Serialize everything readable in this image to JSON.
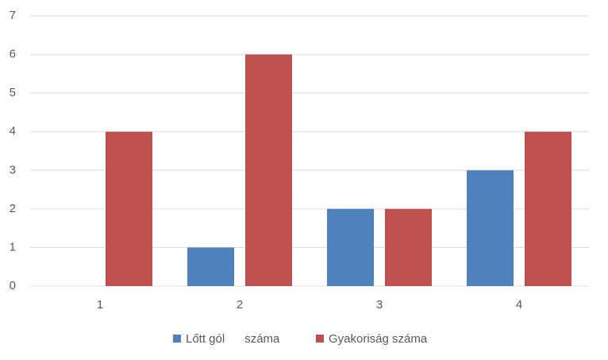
{
  "chart_data": {
    "type": "bar",
    "categories": [
      "1",
      "2",
      "3",
      "4"
    ],
    "series": [
      {
        "name": "Lőtt gól      száma",
        "color": "#4f81bd",
        "values": [
          0,
          1,
          2,
          3
        ]
      },
      {
        "name": "Gyakoriság száma",
        "color": "#c0504d",
        "values": [
          4,
          6,
          2,
          4
        ]
      }
    ],
    "ylim": [
      0,
      7
    ],
    "yticks": [
      0,
      1,
      2,
      3,
      4,
      5,
      6,
      7
    ],
    "grid": true,
    "legend": "bottom"
  }
}
